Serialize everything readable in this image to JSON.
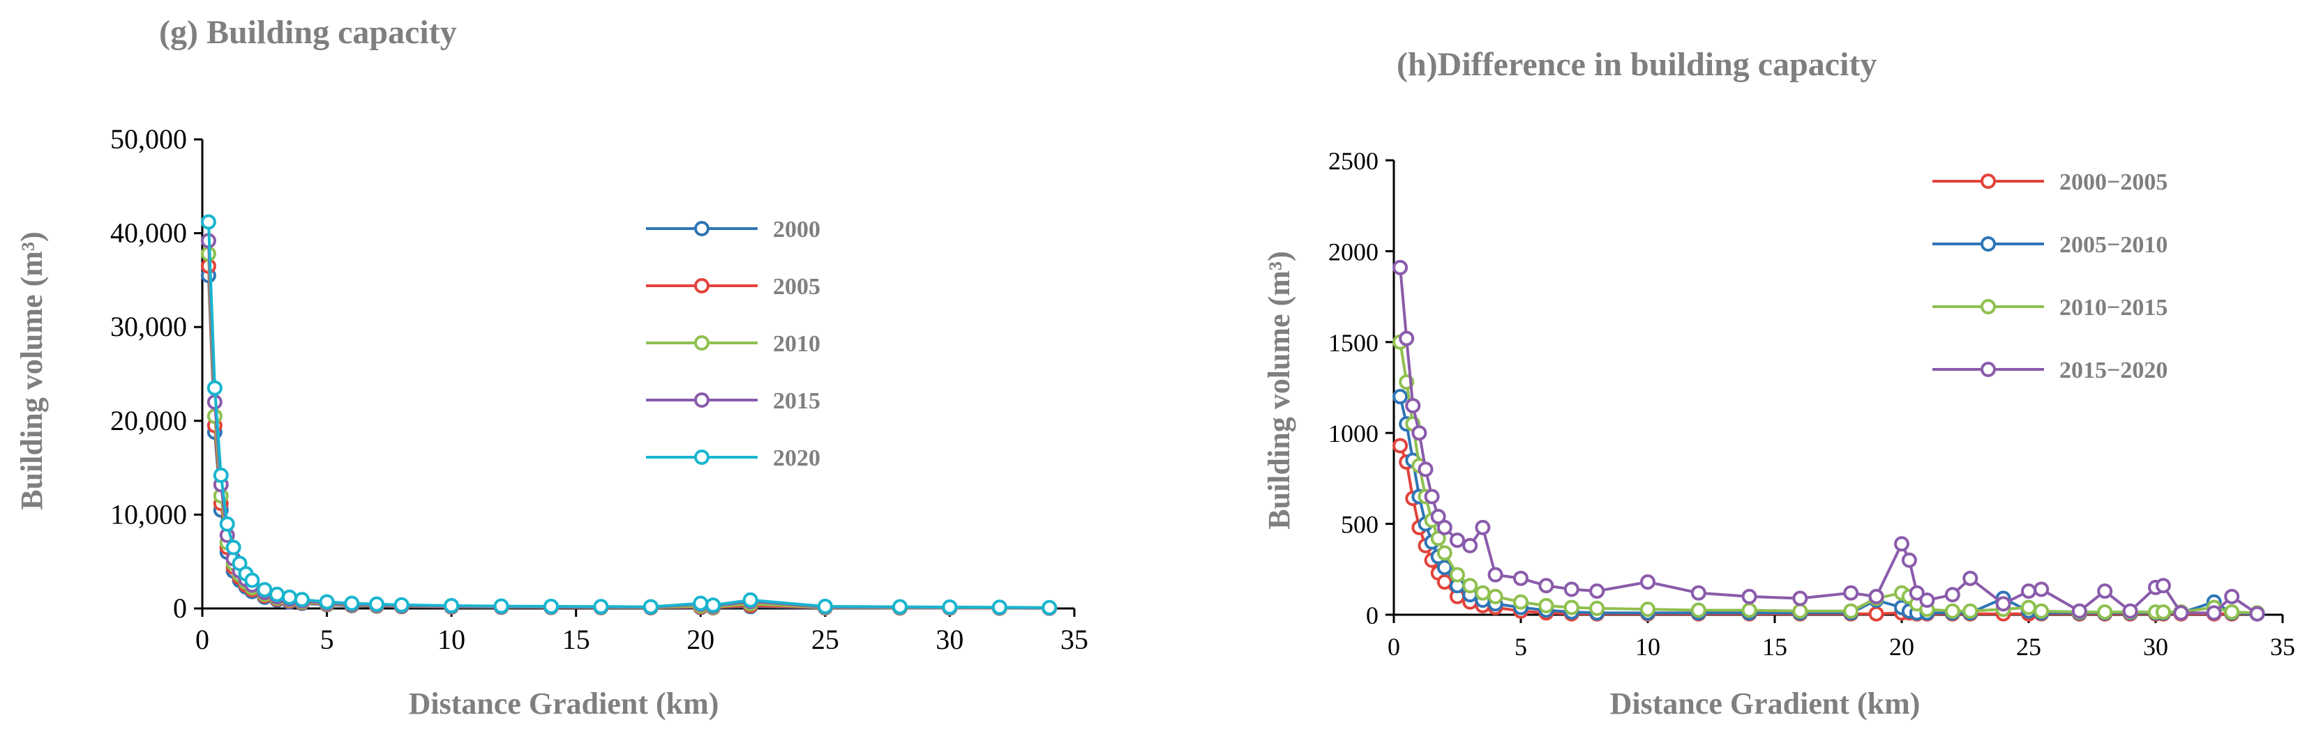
{
  "chart_data": [
    {
      "type": "line",
      "title": "(g) Building capacity",
      "xlabel": "Distance Gradient (km)",
      "ylabel": "Building volume (m³)",
      "xlim": [
        0,
        35
      ],
      "ylim": [
        0,
        50000
      ],
      "xticks": [
        "0",
        "5",
        "10",
        "15",
        "20",
        "25",
        "30",
        "35"
      ],
      "yticks": [
        "0",
        "10,000",
        "20,000",
        "30,000",
        "40,000",
        "50,000"
      ],
      "legend_position": "upper-middle",
      "x": [
        0.25,
        0.5,
        0.75,
        1.0,
        1.25,
        1.5,
        1.75,
        2.0,
        2.5,
        3.0,
        3.5,
        4.0,
        5.0,
        6.0,
        7.0,
        8.0,
        10.0,
        12.0,
        14.0,
        16.0,
        18.0,
        20.0,
        20.5,
        22.0,
        25.0,
        28.0,
        30.0,
        32.0,
        34.0
      ],
      "series": [
        {
          "name": "2000",
          "color": "#2e75b6",
          "values": [
            35500,
            18800,
            10500,
            6000,
            4000,
            3000,
            2300,
            1800,
            1200,
            900,
            700,
            550,
            400,
            300,
            250,
            200,
            150,
            120,
            100,
            90,
            80,
            100,
            80,
            200,
            60,
            50,
            40,
            30,
            20
          ]
        },
        {
          "name": "2005",
          "color": "#e2433b",
          "values": [
            36500,
            19500,
            11200,
            6500,
            4400,
            3300,
            2500,
            2000,
            1350,
            1000,
            800,
            620,
            450,
            340,
            280,
            230,
            170,
            140,
            120,
            100,
            90,
            150,
            100,
            300,
            80,
            60,
            50,
            40,
            30
          ]
        },
        {
          "name": "2010",
          "color": "#8fc04f",
          "values": [
            37800,
            20500,
            12000,
            7000,
            4800,
            3600,
            2800,
            2200,
            1500,
            1100,
            900,
            700,
            500,
            380,
            320,
            260,
            200,
            160,
            140,
            120,
            110,
            250,
            150,
            500,
            100,
            80,
            70,
            60,
            40
          ]
        },
        {
          "name": "2015",
          "color": "#8a5bab",
          "values": [
            39200,
            22000,
            13200,
            7800,
            5300,
            4000,
            3100,
            2500,
            1700,
            1250,
            1000,
            800,
            580,
            440,
            370,
            300,
            230,
            190,
            170,
            150,
            140,
            450,
            250,
            750,
            150,
            120,
            100,
            90,
            60
          ]
        },
        {
          "name": "2020",
          "color": "#19b5cf",
          "values": [
            41200,
            23500,
            14200,
            9000,
            6500,
            4800,
            3700,
            3000,
            2000,
            1500,
            1200,
            950,
            700,
            550,
            460,
            380,
            300,
            250,
            220,
            200,
            180,
            550,
            350,
            900,
            220,
            180,
            150,
            130,
            90
          ]
        }
      ]
    },
    {
      "type": "line",
      "title": "(h)Difference in building capacity",
      "xlabel": "Distance Gradient (km)",
      "ylabel": "Building volume (m³)",
      "xlim": [
        0,
        35
      ],
      "ylim": [
        0,
        2500
      ],
      "xticks": [
        "0",
        "5",
        "10",
        "15",
        "20",
        "25",
        "30",
        "35"
      ],
      "yticks": [
        "0",
        "500",
        "1000",
        "1500",
        "2000",
        "2500"
      ],
      "legend_position": "upper-right",
      "x": [
        0.25,
        0.5,
        0.75,
        1.0,
        1.25,
        1.5,
        1.75,
        2.0,
        2.5,
        3.0,
        3.5,
        4.0,
        5.0,
        6.0,
        7.0,
        8.0,
        10.0,
        12.0,
        14.0,
        16.0,
        18.0,
        19.0,
        20.0,
        20.3,
        20.6,
        21.0,
        22.0,
        22.7,
        24.0,
        25.0,
        25.5,
        27.0,
        28.0,
        29.0,
        30.0,
        30.3,
        31.0,
        32.3,
        33.0,
        34.0
      ],
      "series": [
        {
          "name": "2000−2005",
          "color": "#e2433b",
          "values": [
            930,
            840,
            640,
            480,
            380,
            300,
            230,
            180,
            100,
            70,
            50,
            40,
            20,
            10,
            5,
            5,
            5,
            5,
            5,
            5,
            5,
            5,
            10,
            10,
            5,
            5,
            5,
            5,
            5,
            5,
            5,
            5,
            5,
            5,
            5,
            5,
            5,
            5,
            5,
            5
          ]
        },
        {
          "name": "2005−2010",
          "color": "#2e75b6",
          "values": [
            1200,
            1050,
            850,
            650,
            500,
            400,
            320,
            260,
            160,
            110,
            80,
            60,
            40,
            25,
            15,
            10,
            10,
            10,
            10,
            10,
            10,
            80,
            40,
            20,
            10,
            10,
            10,
            10,
            90,
            20,
            10,
            10,
            10,
            10,
            10,
            10,
            10,
            70,
            10,
            5
          ]
        },
        {
          "name": "2010−2015",
          "color": "#8fc04f",
          "values": [
            1500,
            1280,
            1050,
            820,
            650,
            520,
            420,
            340,
            220,
            160,
            120,
            100,
            70,
            50,
            40,
            35,
            30,
            25,
            25,
            20,
            20,
            90,
            120,
            100,
            60,
            30,
            20,
            20,
            30,
            40,
            20,
            15,
            15,
            15,
            15,
            15,
            15,
            40,
            15,
            10
          ]
        },
        {
          "name": "2015−2020",
          "color": "#8a5bab",
          "values": [
            1910,
            1520,
            1150,
            1000,
            800,
            650,
            540,
            480,
            410,
            380,
            480,
            220,
            200,
            160,
            140,
            130,
            180,
            120,
            100,
            90,
            120,
            100,
            390,
            300,
            120,
            80,
            110,
            200,
            60,
            130,
            140,
            20,
            130,
            20,
            150,
            160,
            10,
            10,
            100,
            5
          ]
        }
      ]
    }
  ]
}
